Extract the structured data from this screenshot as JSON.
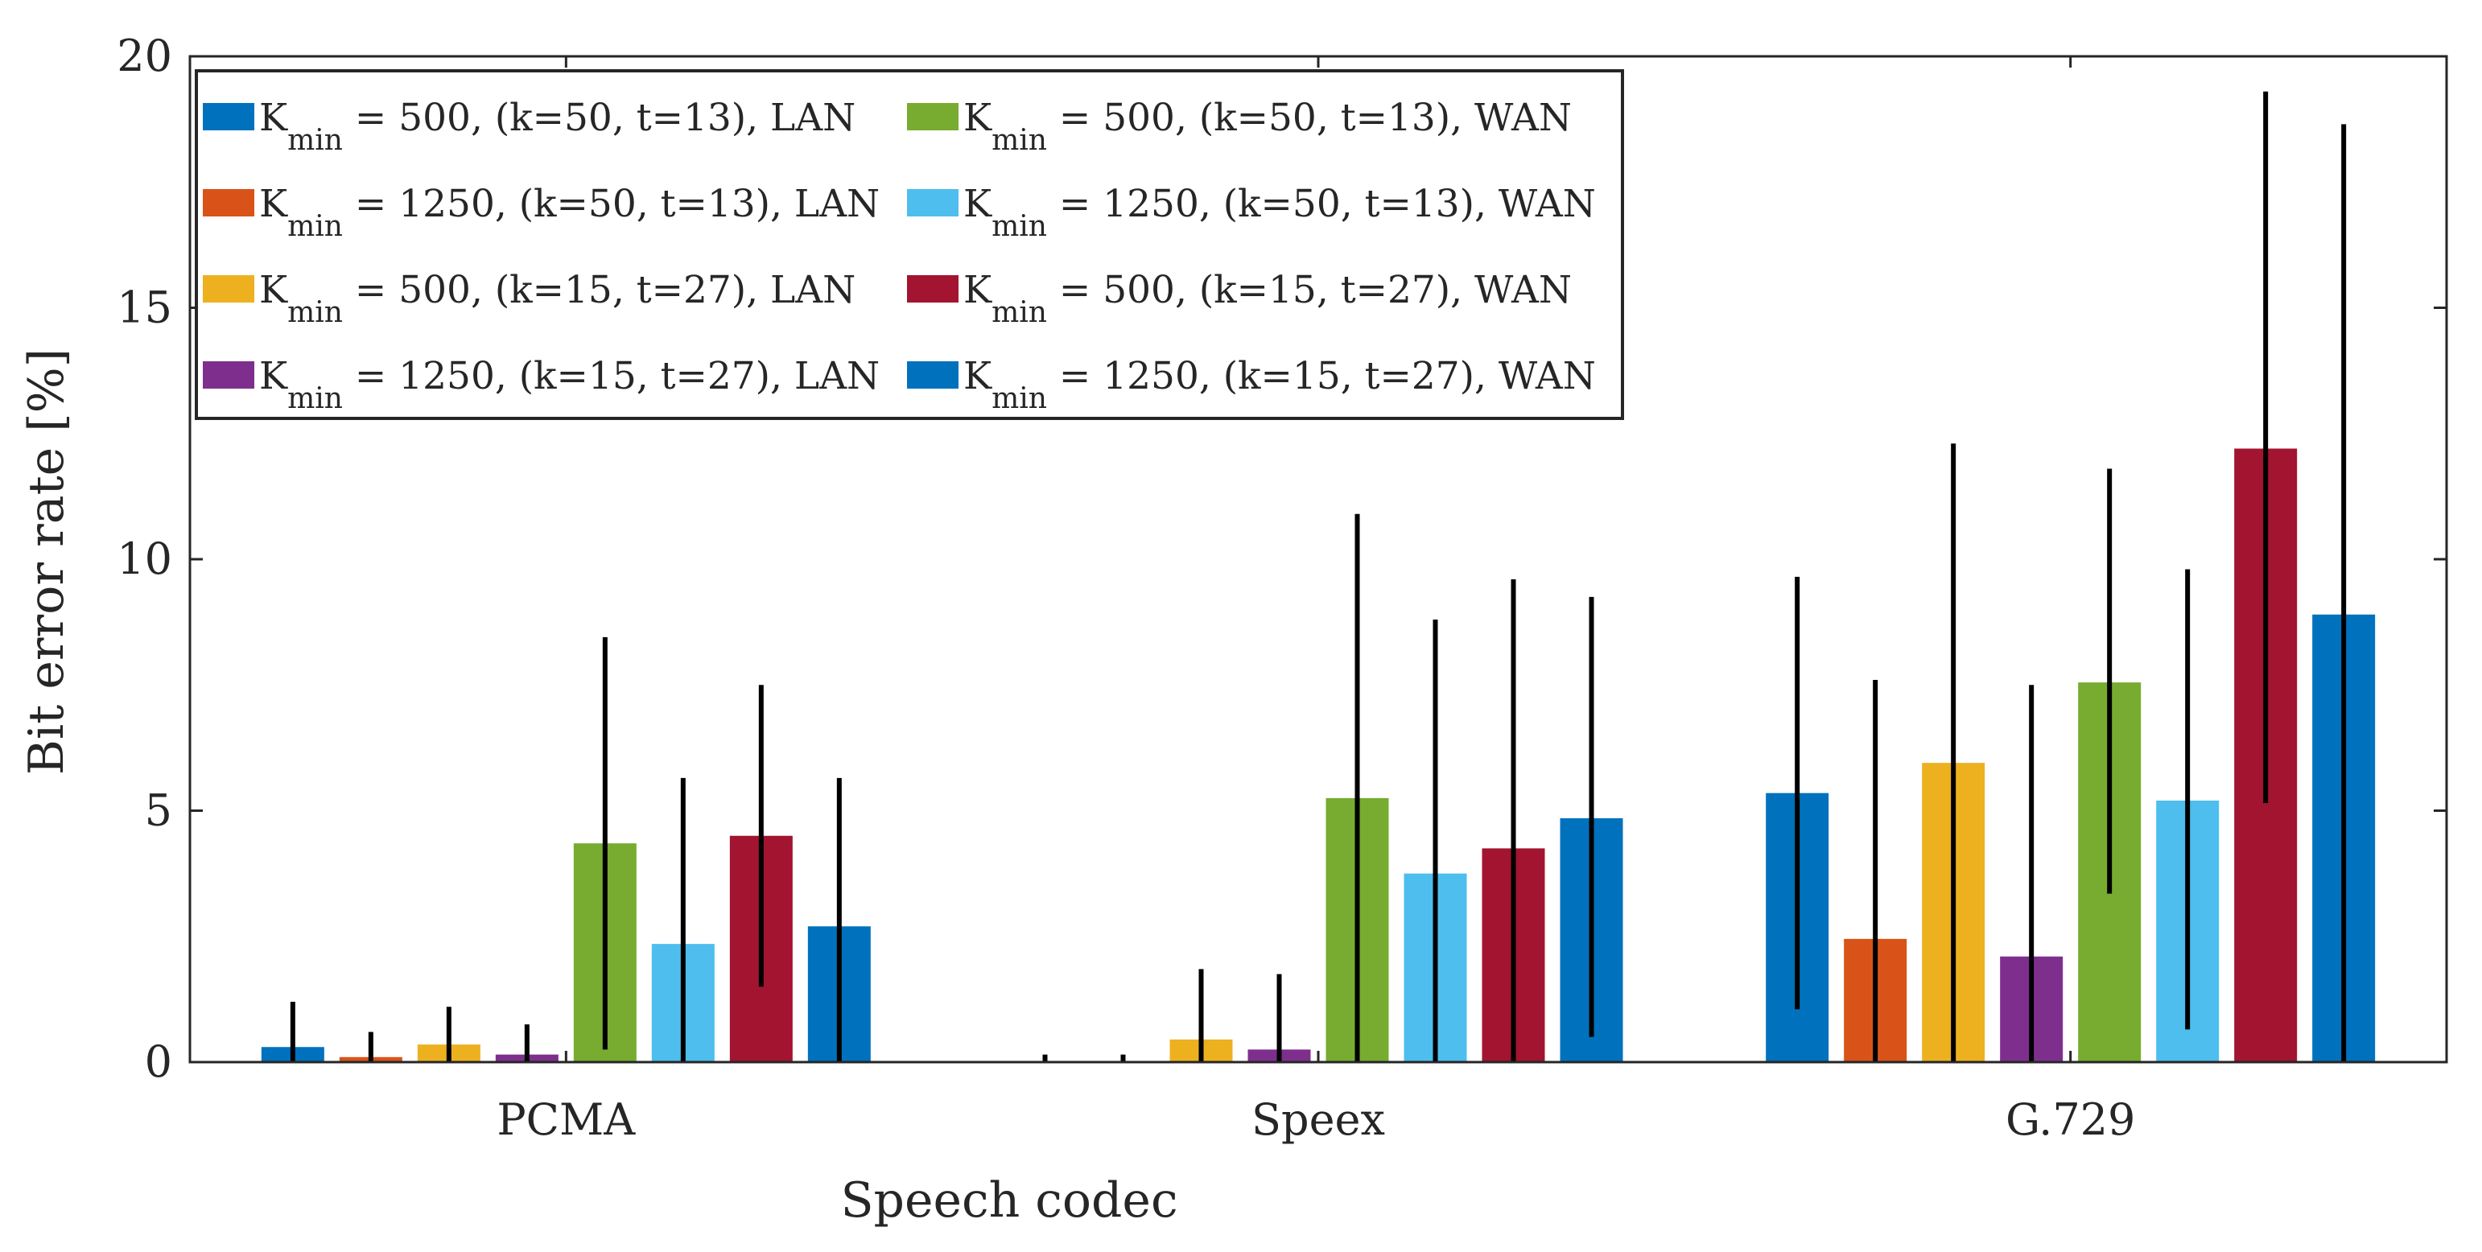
{
  "chart_data": {
    "type": "bar",
    "title": "",
    "xlabel": "Speech codec",
    "ylabel": "Bit error rate [%]",
    "ylim": [
      0,
      20
    ],
    "yticks": [
      "0",
      "5",
      "10",
      "15",
      "20"
    ],
    "grid": false,
    "legend_position": "top-left",
    "categories": [
      "PCMA",
      "Speex",
      "G.729"
    ],
    "series": [
      {
        "name": "K_min = 500, (k=50, t=13), LAN",
        "legend_main": "K",
        "legend_sub": "min",
        "legend_rest": " = 500, (k=50, t=13), LAN",
        "color": "#0072BD",
        "values": [
          0.3,
          0.0,
          5.35
        ],
        "error_low": [
          0.0,
          0.0,
          1.05
        ],
        "error_high": [
          1.2,
          0.15,
          9.65
        ]
      },
      {
        "name": "K_min = 1250, (k=50, t=13), LAN",
        "legend_main": "K",
        "legend_sub": "min",
        "legend_rest": " = 1250, (k=50, t=13), LAN",
        "color": "#D95319",
        "values": [
          0.1,
          0.0,
          2.45
        ],
        "error_low": [
          0.0,
          0.0,
          0.0
        ],
        "error_high": [
          0.6,
          0.15,
          7.6
        ]
      },
      {
        "name": "K_min = 500, (k=15, t=27), LAN",
        "legend_main": "K",
        "legend_sub": "min",
        "legend_rest": " = 500, (k=15, t=27), LAN",
        "color": "#EDB120",
        "values": [
          0.35,
          0.45,
          5.95
        ],
        "error_low": [
          0.0,
          0.0,
          0.0
        ],
        "error_high": [
          1.1,
          1.85,
          12.3
        ]
      },
      {
        "name": "K_min = 1250, (k=15, t=27), LAN",
        "legend_main": "K",
        "legend_sub": "min",
        "legend_rest": " = 1250, (k=15, t=27), LAN",
        "color": "#7E2F8E",
        "values": [
          0.15,
          0.25,
          2.1
        ],
        "error_low": [
          0.0,
          0.0,
          0.0
        ],
        "error_high": [
          0.75,
          1.75,
          7.5
        ]
      },
      {
        "name": "K_min = 500, (k=50, t=13), WAN",
        "legend_main": "K",
        "legend_sub": "min",
        "legend_rest": " = 500, (k=50, t=13), WAN",
        "color": "#77AC30",
        "values": [
          4.35,
          5.25,
          7.55
        ],
        "error_low": [
          0.25,
          0.0,
          3.35
        ],
        "error_high": [
          8.45,
          10.9,
          11.8
        ]
      },
      {
        "name": "K_min = 1250, (k=50, t=13), WAN",
        "legend_main": "K",
        "legend_sub": "min",
        "legend_rest": " = 1250, (k=50, t=13), WAN",
        "color": "#4DBEEE",
        "values": [
          2.35,
          3.75,
          5.2
        ],
        "error_low": [
          0.0,
          0.0,
          0.65
        ],
        "error_high": [
          5.65,
          8.8,
          9.8
        ]
      },
      {
        "name": "K_min = 500, (k=15, t=27), WAN",
        "legend_main": "K",
        "legend_sub": "min",
        "legend_rest": " = 500, (k=15, t=27), WAN",
        "color": "#A2142F",
        "values": [
          4.5,
          4.25,
          12.2
        ],
        "error_low": [
          1.5,
          0.0,
          5.15
        ],
        "error_high": [
          7.5,
          9.6,
          19.3
        ]
      },
      {
        "name": "K_min = 1250, (k=15, t=27), WAN",
        "legend_main": "K",
        "legend_sub": "min",
        "legend_rest": " = 1250, (k=15, t=27), WAN",
        "color": "#0072BD",
        "values": [
          2.7,
          4.85,
          8.9
        ],
        "error_low": [
          0.0,
          0.5,
          0.0
        ],
        "error_high": [
          5.65,
          9.25,
          18.65
        ]
      }
    ]
  }
}
